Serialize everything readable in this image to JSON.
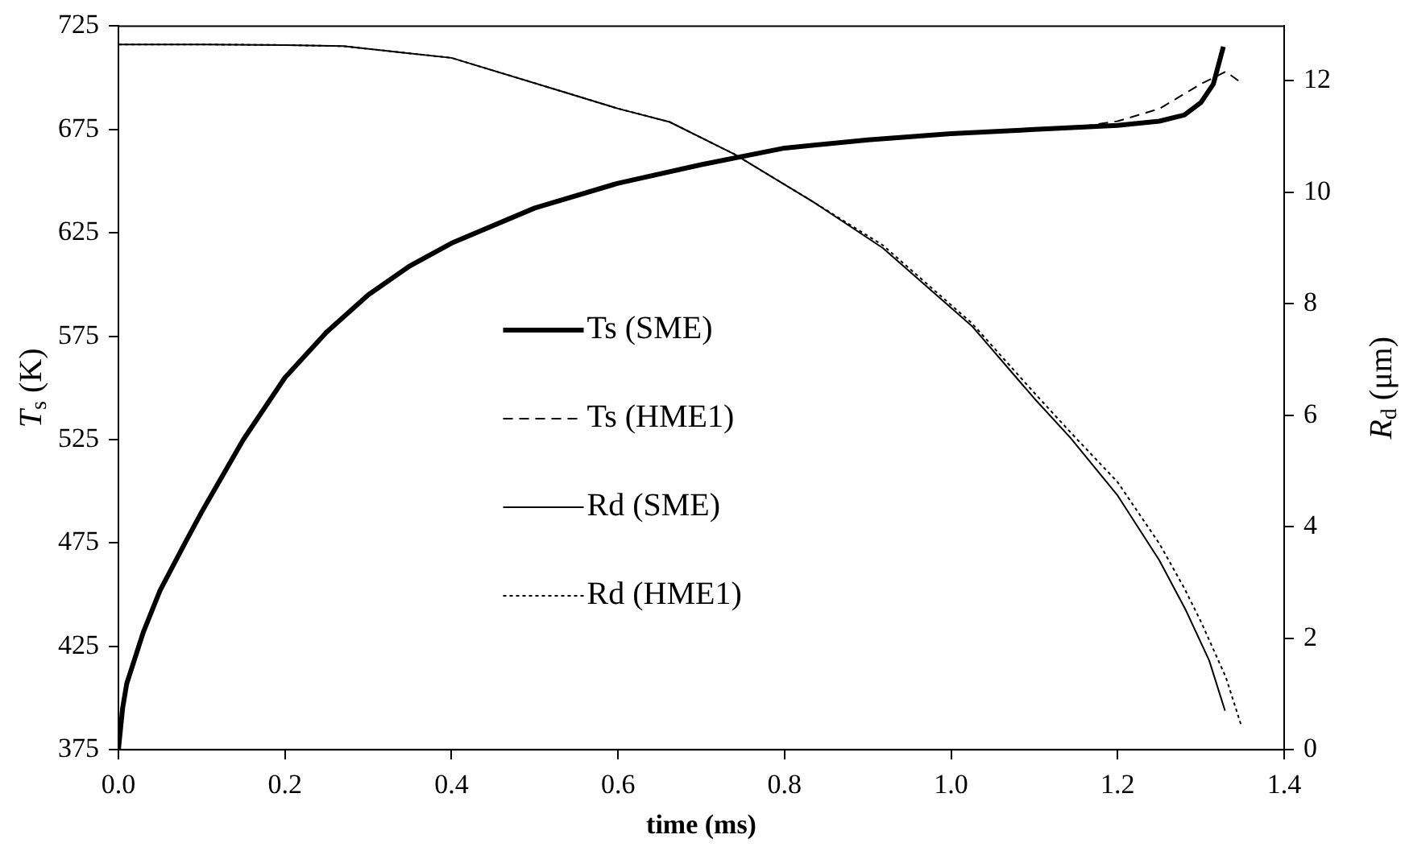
{
  "chart_data": {
    "type": "line",
    "xlabel": "time (ms)",
    "ylabel": "T$_{s}$ (K)",
    "y2label": "R$_{d}$ (μm)",
    "xlim": [
      0,
      1.4
    ],
    "xticks": [
      {
        "value": 0,
        "label": "0.0"
      },
      0.2,
      0.4,
      0.6,
      0.8,
      {
        "value": 1,
        "label": "1.0"
      },
      1.2,
      1.4
    ],
    "ylim": [
      375,
      725
    ],
    "yticks": [
      375,
      425,
      475,
      525,
      575,
      625,
      675,
      725
    ],
    "y2lim": [
      0,
      12.98
    ],
    "y2ticks": [
      0,
      2,
      4,
      6,
      8,
      10,
      12
    ],
    "grid": false,
    "legend": "center",
    "marker": "none",
    "series": [
      {
        "name": "Ts (SME)",
        "color": "#000000",
        "line_style": "solid",
        "x": [
          0,
          0.005,
          0.01,
          0.03,
          0.05,
          0.08,
          0.1,
          0.15,
          0.2,
          0.25,
          0.3,
          0.35,
          0.4,
          0.5,
          0.6,
          0.7,
          0.8,
          0.9,
          1.0,
          1.1,
          1.2,
          1.25,
          1.28,
          1.3,
          1.315,
          1.327
        ],
        "values": [
          375,
          395,
          407,
          432,
          452,
          475,
          490,
          525,
          555,
          577,
          595,
          609,
          620,
          637,
          649,
          658,
          666,
          670,
          673,
          675,
          677,
          679,
          682,
          688,
          697,
          715
        ]
      },
      {
        "name": "Ts (HME1)",
        "color": "#000000",
        "line_style": "dashed",
        "x": [
          1.1,
          1.15,
          1.2,
          1.25,
          1.3,
          1.33,
          1.347
        ],
        "values": [
          675,
          676,
          679,
          685,
          697,
          703,
          698
        ]
      },
      {
        "name": "Rd (SME)",
        "color": "#000000",
        "line_style": "solid",
        "axis": "y2",
        "x": [
          0,
          0.1,
          0.2,
          0.27,
          0.4,
          0.53,
          0.6,
          0.662,
          0.74,
          0.833,
          0.918,
          1.025,
          1.1,
          1.143,
          1.2,
          1.25,
          1.282,
          1.31,
          1.329
        ],
        "values": [
          12.65,
          12.65,
          12.64,
          12.62,
          12.41,
          11.82,
          11.5,
          11.26,
          10.68,
          9.84,
          9.0,
          7.6,
          6.3,
          5.6,
          4.56,
          3.4,
          2.5,
          1.6,
          0.7
        ]
      },
      {
        "name": "Rd (HME1)",
        "color": "#000000",
        "line_style": "dotted",
        "axis": "y2",
        "x": [
          0,
          0.1,
          0.2,
          0.27,
          0.4,
          0.53,
          0.6,
          0.662,
          0.74,
          0.833,
          0.918,
          1.025,
          1.1,
          1.143,
          1.2,
          1.25,
          1.28,
          1.3,
          1.33,
          1.349
        ],
        "values": [
          12.65,
          12.65,
          12.64,
          12.62,
          12.41,
          11.82,
          11.5,
          11.26,
          10.68,
          9.84,
          9.05,
          7.65,
          6.4,
          5.7,
          4.8,
          3.7,
          2.9,
          2.3,
          1.3,
          0.41
        ]
      }
    ]
  }
}
